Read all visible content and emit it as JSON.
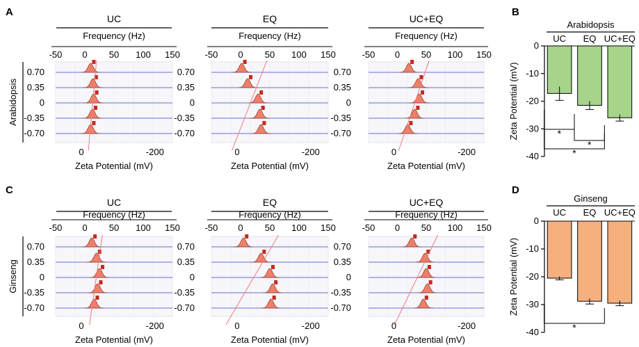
{
  "chart_data": {
    "type": "figure",
    "panel_letters": [
      "A",
      "B",
      "C",
      "D"
    ],
    "spectra": {
      "freq_label": "Frequency (Hz)",
      "zeta_label": "Zeta Potential (mV)",
      "freq_ticks": [
        "-50",
        "0",
        "50",
        "100",
        "150"
      ],
      "zeta_ticks": [
        "0",
        "-200"
      ],
      "trace_labels": [
        "0.70",
        "0.35",
        "0",
        "-0.35",
        "-0.70"
      ],
      "columns": [
        "UC",
        "EQ",
        "UC+EQ"
      ],
      "rows": [
        {
          "species": "Arabidopsis",
          "panels": [
            {
              "peaks_hz": [
                10,
                14,
                15,
                13,
                10
              ],
              "fit_line_hz": [
                6,
                20
              ]
            },
            {
              "peaks_hz": [
                2,
                12,
                30,
                33,
                35
              ],
              "fit_line_hz": [
                -15,
                45
              ]
            },
            {
              "peaks_hz": [
                20,
                36,
                38,
                30,
                18
              ],
              "fit_line_hz": [
                2,
                55
              ]
            }
          ]
        },
        {
          "species": "Ginseng",
          "panels": [
            {
              "peaks_hz": [
                12,
                20,
                25,
                22,
                16
              ],
              "fit_line_hz": [
                8,
                30
              ]
            },
            {
              "peaks_hz": [
                5,
                35,
                50,
                55,
                52
              ],
              "fit_line_hz": [
                -25,
                65
              ]
            },
            {
              "peaks_hz": [
                25,
                48,
                50,
                52,
                45
              ],
              "fit_line_hz": [
                -5,
                70
              ]
            }
          ]
        }
      ]
    },
    "bar_charts": [
      {
        "panel": "B",
        "type": "bar",
        "title": "Arabidopsis",
        "categories": [
          "UC",
          "EQ",
          "UC+EQ"
        ],
        "values": [
          -17.2,
          -21.5,
          -26
        ],
        "errors": [
          2.5,
          1.5,
          1.2
        ],
        "ylabel": "Zeta Potential (mV)",
        "ylim": [
          -40,
          0
        ],
        "yticks": [
          "0",
          "-10",
          "-20",
          "-30",
          "-40"
        ],
        "color": "#a5d48a",
        "significance": [
          {
            "pair": [
              "UC",
              "EQ"
            ],
            "label": "*"
          },
          {
            "pair": [
              "EQ",
              "UC+EQ"
            ],
            "label": "*"
          },
          {
            "pair": [
              "UC",
              "UC+EQ"
            ],
            "label": "*"
          }
        ]
      },
      {
        "panel": "D",
        "type": "bar",
        "title": "Ginseng",
        "categories": [
          "UC",
          "EQ",
          "UC+EQ"
        ],
        "values": [
          -20.5,
          -28.8,
          -29.5
        ],
        "errors": [
          0.6,
          1.0,
          0.9
        ],
        "ylabel": "Zeta Potential (mV)",
        "ylim": [
          -40,
          0
        ],
        "yticks": [
          "0",
          "-10",
          "-20",
          "-30",
          "-40"
        ],
        "color": "#f5b07e",
        "significance": [
          {
            "pair": [
              "UC",
              "UC+EQ"
            ],
            "label": "*"
          }
        ]
      }
    ]
  }
}
